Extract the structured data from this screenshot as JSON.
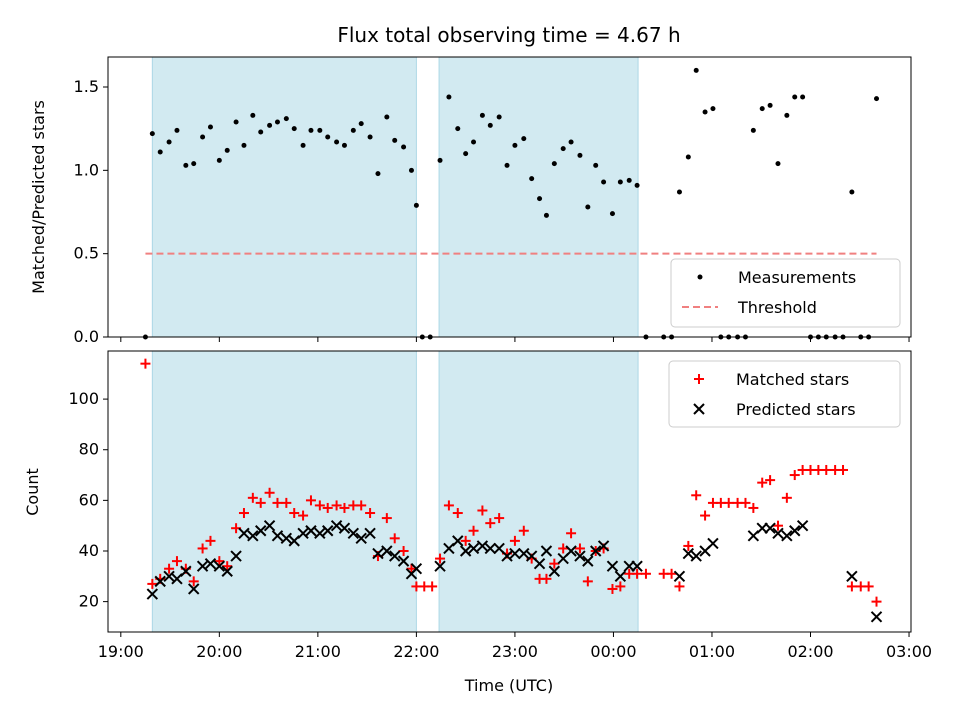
{
  "chart_data": [
    {
      "type": "scatter",
      "title": "Flux total observing time = 4.67 h",
      "xlabel": "",
      "ylabel": "Matched/Predicted stars",
      "ylim": [
        0,
        1.68
      ],
      "yticks": [
        "0.0",
        "0.5",
        "1.0",
        "1.5"
      ],
      "yticks_values": [
        0,
        0.5,
        1.0,
        1.5
      ],
      "xlim_hours": [
        18.87,
        27.02
      ],
      "shaded_intervals_hours": [
        [
          19.32,
          22.0
        ],
        [
          22.23,
          24.25
        ]
      ],
      "grid": false,
      "legend_position": "lower-right",
      "series": [
        {
          "name": "Measurements",
          "marker": "dot",
          "color": "#000000",
          "points": [
            [
              19.25,
              0.0
            ],
            [
              19.32,
              1.22
            ],
            [
              19.4,
              1.11
            ],
            [
              19.49,
              1.17
            ],
            [
              19.57,
              1.24
            ],
            [
              19.66,
              1.03
            ],
            [
              19.74,
              1.04
            ],
            [
              19.83,
              1.2
            ],
            [
              19.91,
              1.26
            ],
            [
              20.0,
              1.06
            ],
            [
              20.08,
              1.12
            ],
            [
              20.17,
              1.29
            ],
            [
              20.25,
              1.15
            ],
            [
              20.34,
              1.33
            ],
            [
              20.42,
              1.23
            ],
            [
              20.51,
              1.27
            ],
            [
              20.59,
              1.29
            ],
            [
              20.68,
              1.31
            ],
            [
              20.76,
              1.25
            ],
            [
              20.85,
              1.15
            ],
            [
              20.93,
              1.24
            ],
            [
              21.02,
              1.24
            ],
            [
              21.1,
              1.2
            ],
            [
              21.19,
              1.17
            ],
            [
              21.27,
              1.15
            ],
            [
              21.36,
              1.24
            ],
            [
              21.44,
              1.28
            ],
            [
              21.53,
              1.2
            ],
            [
              21.61,
              0.98
            ],
            [
              21.7,
              1.32
            ],
            [
              21.78,
              1.18
            ],
            [
              21.87,
              1.14
            ],
            [
              21.95,
              1.0
            ],
            [
              22.0,
              0.79
            ],
            [
              22.06,
              0.0
            ],
            [
              22.14,
              0.0
            ],
            [
              22.24,
              1.06
            ],
            [
              22.33,
              1.44
            ],
            [
              22.42,
              1.25
            ],
            [
              22.5,
              1.1
            ],
            [
              22.58,
              1.17
            ],
            [
              22.67,
              1.33
            ],
            [
              22.75,
              1.27
            ],
            [
              22.84,
              1.32
            ],
            [
              22.92,
              1.03
            ],
            [
              23.0,
              1.15
            ],
            [
              23.09,
              1.19
            ],
            [
              23.17,
              0.95
            ],
            [
              23.25,
              0.83
            ],
            [
              23.32,
              0.73
            ],
            [
              23.4,
              1.04
            ],
            [
              23.49,
              1.13
            ],
            [
              23.57,
              1.17
            ],
            [
              23.66,
              1.09
            ],
            [
              23.74,
              0.78
            ],
            [
              23.82,
              1.03
            ],
            [
              23.9,
              0.93
            ],
            [
              23.99,
              0.74
            ],
            [
              24.07,
              0.93
            ],
            [
              24.16,
              0.94
            ],
            [
              24.24,
              0.91
            ],
            [
              24.33,
              0.0
            ],
            [
              24.51,
              0.0
            ],
            [
              24.59,
              0.0
            ],
            [
              24.67,
              0.87
            ],
            [
              24.76,
              1.08
            ],
            [
              24.84,
              1.6
            ],
            [
              24.93,
              1.35
            ],
            [
              25.01,
              1.37
            ],
            [
              25.09,
              0.0
            ],
            [
              25.17,
              0.0
            ],
            [
              25.26,
              0.0
            ],
            [
              25.34,
              0.0
            ],
            [
              25.42,
              1.24
            ],
            [
              25.51,
              1.37
            ],
            [
              25.59,
              1.39
            ],
            [
              25.67,
              1.04
            ],
            [
              25.76,
              1.33
            ],
            [
              25.84,
              1.44
            ],
            [
              25.92,
              1.44
            ],
            [
              26.0,
              0.0
            ],
            [
              26.08,
              0.0
            ],
            [
              26.16,
              0.0
            ],
            [
              26.25,
              0.0
            ],
            [
              26.33,
              0.0
            ],
            [
              26.42,
              0.87
            ],
            [
              26.51,
              0.0
            ],
            [
              26.59,
              0.0
            ],
            [
              26.67,
              1.43
            ]
          ]
        },
        {
          "name": "Threshold",
          "line": "dashed",
          "color": "#f08080",
          "x": [
            19.25,
            26.67
          ],
          "values": [
            0.5,
            0.5
          ]
        }
      ]
    },
    {
      "type": "scatter",
      "title": "",
      "xlabel": "Time (UTC)",
      "ylabel": "Count",
      "ylim": [
        8,
        119
      ],
      "yticks": [
        "20",
        "40",
        "60",
        "80",
        "100"
      ],
      "yticks_values": [
        20,
        40,
        60,
        80,
        100
      ],
      "xlim_hours": [
        18.87,
        27.02
      ],
      "xticks": [
        "19:00",
        "20:00",
        "21:00",
        "22:00",
        "23:00",
        "00:00",
        "01:00",
        "02:00",
        "03:00"
      ],
      "xticks_values": [
        19,
        20,
        21,
        22,
        23,
        24,
        25,
        26,
        27
      ],
      "shaded_intervals_hours": [
        [
          19.32,
          22.0
        ],
        [
          22.23,
          24.25
        ]
      ],
      "grid": false,
      "legend_position": "upper-right",
      "series": [
        {
          "name": "Matched stars",
          "marker": "plus",
          "color": "#ff0000",
          "points": [
            [
              19.25,
              114
            ],
            [
              19.32,
              27
            ],
            [
              19.4,
              29
            ],
            [
              19.49,
              33
            ],
            [
              19.57,
              36
            ],
            [
              19.66,
              33
            ],
            [
              19.74,
              28
            ],
            [
              19.83,
              41
            ],
            [
              19.91,
              44
            ],
            [
              20.0,
              36
            ],
            [
              20.08,
              34
            ],
            [
              20.17,
              49
            ],
            [
              20.25,
              55
            ],
            [
              20.34,
              61
            ],
            [
              20.42,
              59
            ],
            [
              20.51,
              63
            ],
            [
              20.59,
              59
            ],
            [
              20.68,
              59
            ],
            [
              20.76,
              55
            ],
            [
              20.85,
              54
            ],
            [
              20.93,
              60
            ],
            [
              21.02,
              58
            ],
            [
              21.1,
              57
            ],
            [
              21.19,
              58
            ],
            [
              21.27,
              57
            ],
            [
              21.36,
              58
            ],
            [
              21.44,
              58
            ],
            [
              21.53,
              55
            ],
            [
              21.61,
              38
            ],
            [
              21.7,
              53
            ],
            [
              21.78,
              45
            ],
            [
              21.87,
              40
            ],
            [
              21.95,
              33
            ],
            [
              22.0,
              26
            ],
            [
              22.08,
              26
            ],
            [
              22.16,
              26
            ],
            [
              22.24,
              37
            ],
            [
              22.33,
              58
            ],
            [
              22.42,
              55
            ],
            [
              22.5,
              44
            ],
            [
              22.58,
              48
            ],
            [
              22.67,
              56
            ],
            [
              22.75,
              51
            ],
            [
              22.84,
              53
            ],
            [
              22.92,
              39
            ],
            [
              23.0,
              44
            ],
            [
              23.09,
              48
            ],
            [
              23.17,
              37
            ],
            [
              23.25,
              29
            ],
            [
              23.32,
              29
            ],
            [
              23.4,
              35
            ],
            [
              23.49,
              41
            ],
            [
              23.57,
              47
            ],
            [
              23.66,
              41
            ],
            [
              23.74,
              28
            ],
            [
              23.82,
              40
            ],
            [
              23.9,
              41
            ],
            [
              23.99,
              25
            ],
            [
              24.07,
              26
            ],
            [
              24.16,
              31
            ],
            [
              24.24,
              31
            ],
            [
              24.33,
              31
            ],
            [
              24.51,
              31
            ],
            [
              24.59,
              31
            ],
            [
              24.67,
              26
            ],
            [
              24.76,
              42
            ],
            [
              24.84,
              62
            ],
            [
              24.93,
              54
            ],
            [
              25.01,
              59
            ],
            [
              25.09,
              59
            ],
            [
              25.17,
              59
            ],
            [
              25.26,
              59
            ],
            [
              25.34,
              59
            ],
            [
              25.42,
              57
            ],
            [
              25.51,
              67
            ],
            [
              25.59,
              68
            ],
            [
              25.67,
              50
            ],
            [
              25.76,
              61
            ],
            [
              25.84,
              70
            ],
            [
              25.92,
              72
            ],
            [
              26.0,
              72
            ],
            [
              26.08,
              72
            ],
            [
              26.16,
              72
            ],
            [
              26.25,
              72
            ],
            [
              26.33,
              72
            ],
            [
              26.42,
              26
            ],
            [
              26.51,
              26
            ],
            [
              26.59,
              26
            ],
            [
              26.67,
              20
            ]
          ]
        },
        {
          "name": "Predicted stars",
          "marker": "x",
          "color": "#000000",
          "points": [
            [
              19.32,
              23
            ],
            [
              19.4,
              28
            ],
            [
              19.49,
              30
            ],
            [
              19.57,
              29
            ],
            [
              19.66,
              32
            ],
            [
              19.74,
              25
            ],
            [
              19.83,
              34
            ],
            [
              19.91,
              35
            ],
            [
              20.0,
              34
            ],
            [
              20.08,
              32
            ],
            [
              20.17,
              38
            ],
            [
              20.25,
              47
            ],
            [
              20.34,
              46
            ],
            [
              20.42,
              48
            ],
            [
              20.51,
              50
            ],
            [
              20.59,
              46
            ],
            [
              20.68,
              45
            ],
            [
              20.76,
              44
            ],
            [
              20.85,
              47
            ],
            [
              20.93,
              48
            ],
            [
              21.02,
              47
            ],
            [
              21.1,
              48
            ],
            [
              21.19,
              50
            ],
            [
              21.27,
              49
            ],
            [
              21.36,
              47
            ],
            [
              21.44,
              45
            ],
            [
              21.53,
              47
            ],
            [
              21.61,
              39
            ],
            [
              21.7,
              40
            ],
            [
              21.78,
              38
            ],
            [
              21.87,
              36
            ],
            [
              21.95,
              31
            ],
            [
              22.0,
              33
            ],
            [
              22.24,
              34
            ],
            [
              22.33,
              41
            ],
            [
              22.42,
              44
            ],
            [
              22.5,
              40
            ],
            [
              22.58,
              41
            ],
            [
              22.67,
              42
            ],
            [
              22.75,
              41
            ],
            [
              22.84,
              41
            ],
            [
              22.92,
              38
            ],
            [
              23.0,
              39
            ],
            [
              23.09,
              39
            ],
            [
              23.17,
              38
            ],
            [
              23.25,
              35
            ],
            [
              23.32,
              40
            ],
            [
              23.4,
              32
            ],
            [
              23.49,
              37
            ],
            [
              23.57,
              40
            ],
            [
              23.66,
              38
            ],
            [
              23.74,
              36
            ],
            [
              23.82,
              40
            ],
            [
              23.9,
              42
            ],
            [
              23.99,
              34
            ],
            [
              24.07,
              30
            ],
            [
              24.16,
              34
            ],
            [
              24.24,
              34
            ],
            [
              24.67,
              30
            ],
            [
              24.76,
              39
            ],
            [
              24.84,
              38
            ],
            [
              24.93,
              40
            ],
            [
              25.01,
              43
            ],
            [
              25.42,
              46
            ],
            [
              25.51,
              49
            ],
            [
              25.59,
              49
            ],
            [
              25.67,
              47
            ],
            [
              25.76,
              46
            ],
            [
              25.84,
              48
            ],
            [
              25.92,
              50
            ],
            [
              26.42,
              30
            ],
            [
              26.67,
              14
            ]
          ]
        }
      ]
    }
  ]
}
